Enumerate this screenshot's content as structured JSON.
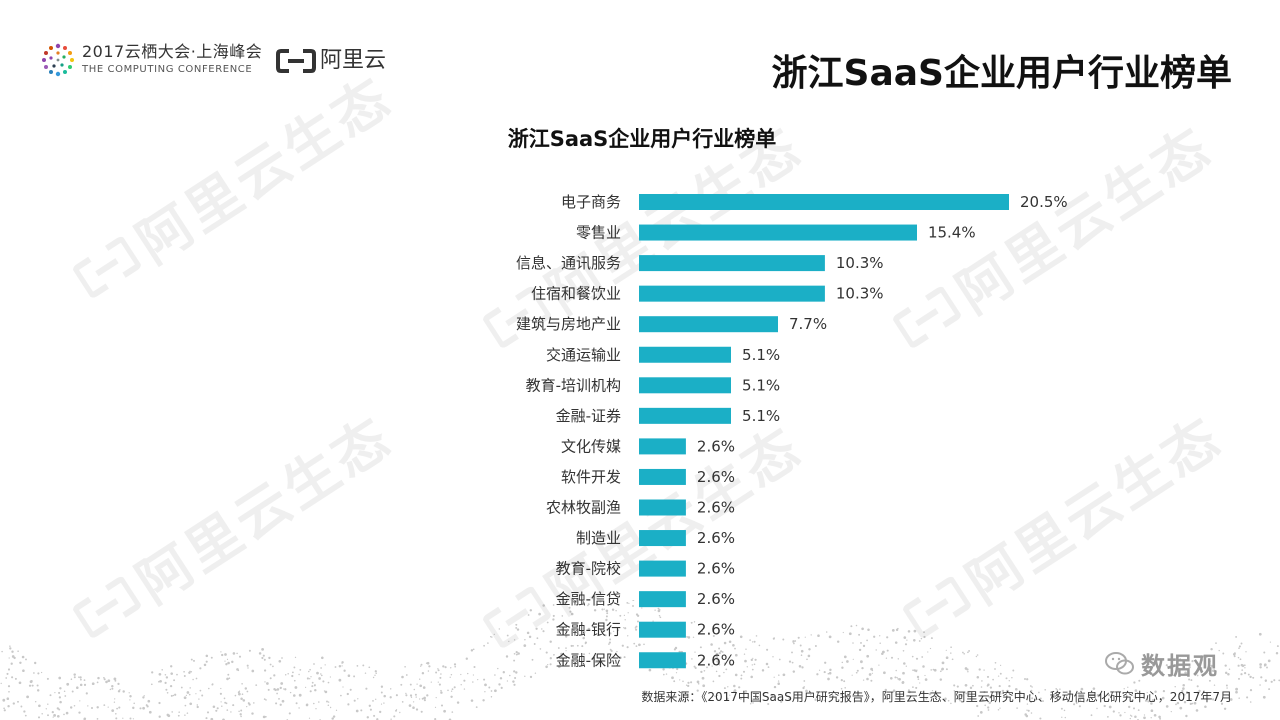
{
  "header": {
    "conference_title": "2017云栖大会·上海峰会",
    "conference_subtitle": "THE COMPUTING CONFERENCE",
    "brand_name": "阿里云",
    "slide_title": "浙江SaaS企业用户行业榜单"
  },
  "watermark": {
    "text": "阿里云生态"
  },
  "colors": {
    "bar": "#1bafc6",
    "brand_orange": "#f58220"
  },
  "chart_data": {
    "type": "bar",
    "orientation": "horizontal",
    "title": "浙江SaaS企业用户行业榜单",
    "categories": [
      "电子商务",
      "零售业",
      "信息、通讯服务",
      "住宿和餐饮业",
      "建筑与房地产业",
      "交通运输业",
      "教育-培训机构",
      "金融-证券",
      "文化传媒",
      "软件开发",
      "农林牧副渔",
      "制造业",
      "教育-院校",
      "金融-信贷",
      "金融-银行",
      "金融-保险"
    ],
    "values": [
      20.5,
      15.4,
      10.3,
      10.3,
      7.7,
      5.1,
      5.1,
      5.1,
      2.6,
      2.6,
      2.6,
      2.6,
      2.6,
      2.6,
      2.6,
      2.6
    ],
    "value_labels": [
      "20.5%",
      "15.4%",
      "10.3%",
      "10.3%",
      "7.7%",
      "5.1%",
      "5.1%",
      "5.1%",
      "2.6%",
      "2.6%",
      "2.6%",
      "2.6%",
      "2.6%",
      "2.6%",
      "2.6%",
      "2.6%"
    ],
    "xlim": [
      0,
      20.5
    ],
    "grid": false,
    "xlabel": "",
    "ylabel": ""
  },
  "footer": {
    "source": "数据来源：《2017中国SaaS用户研究报告》，阿里云生态、阿里云研究中心、移动信息化研究中心，2017年7月",
    "wechat_name": "数据观"
  }
}
